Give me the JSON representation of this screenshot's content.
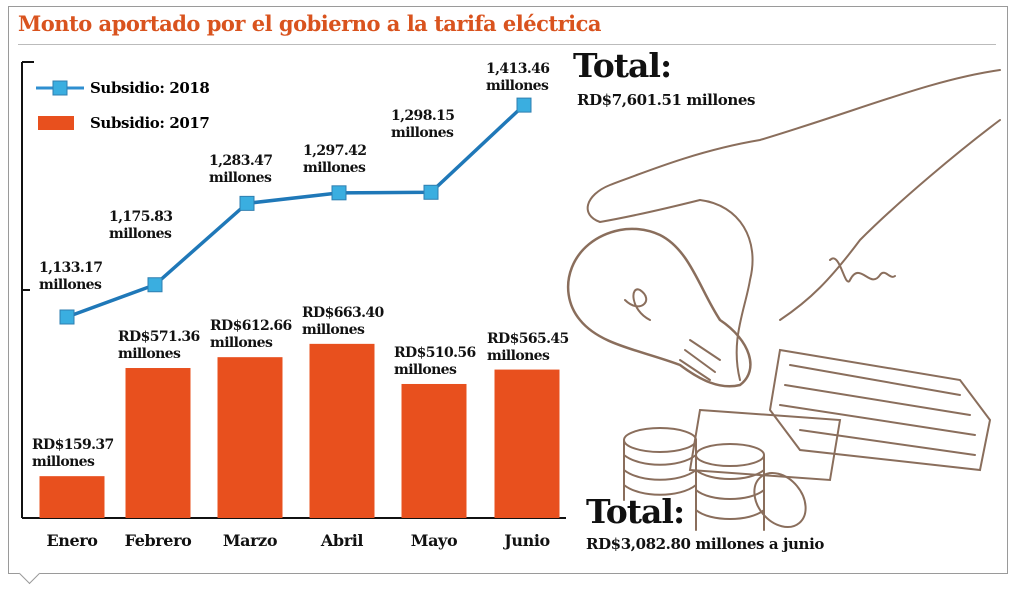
{
  "title": "Monto aportado por el gobierno a la tarifa eléctrica",
  "legend": [
    {
      "label": "Subsidio: 2018",
      "color": "#2f8fd0"
    },
    {
      "label": "Subsidio: 2017",
      "color": "#e8501e"
    }
  ],
  "totals": {
    "t2018_title": "Total:",
    "t2018_value": "RD$7,601.51 millones",
    "t2017_title": "Total:",
    "t2017_value": "RD$3,082.80 millones a junio"
  },
  "chart_data": {
    "type": "bar+line",
    "title": "Monto aportado por el gobierno a la tarifa eléctrica",
    "categories": [
      "Enero",
      "Febrero",
      "Marzo",
      "Abril",
      "Mayo",
      "Junio"
    ],
    "series": [
      {
        "name": "Subsidio: 2018",
        "type": "line",
        "values": [
          1133.17,
          1175.83,
          1283.47,
          1297.42,
          1298.15,
          1413.46
        ],
        "labels": [
          [
            "1,133.17",
            "millones"
          ],
          [
            "1,175.83",
            "millones"
          ],
          [
            "1,283.47",
            "millones"
          ],
          [
            "1,297.42",
            "millones"
          ],
          [
            "1,298.15",
            "millones"
          ],
          [
            "1,413.46",
            "millones"
          ]
        ]
      },
      {
        "name": "Subsidio: 2017",
        "type": "bar",
        "values": [
          159.37,
          571.36,
          612.66,
          663.4,
          510.56,
          565.45
        ],
        "labels": [
          [
            "RD$159.37",
            "millones"
          ],
          [
            "RD$571.36",
            "millones"
          ],
          [
            "RD$612.66",
            "millones"
          ],
          [
            "RD$663.40",
            "millones"
          ],
          [
            "RD$510.56",
            "millones"
          ],
          [
            "RD$565.45",
            "millones"
          ]
        ]
      }
    ],
    "units": "millones RD$",
    "grid": false,
    "legend_position": "top-left"
  }
}
